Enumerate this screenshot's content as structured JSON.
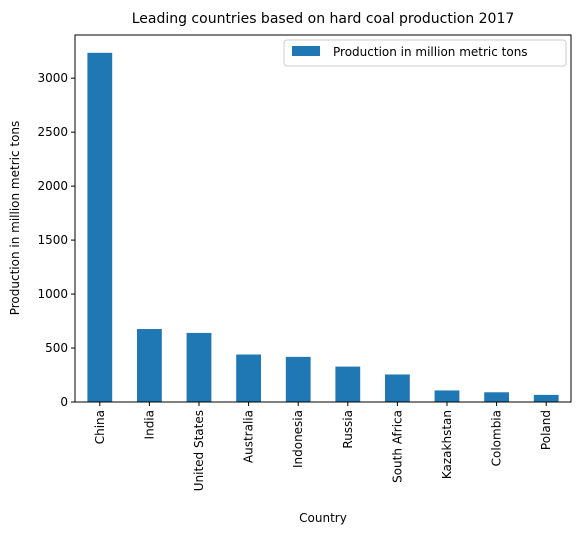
{
  "chart_data": {
    "type": "bar",
    "title": "Leading countries based on hard coal production 2017",
    "xlabel": "Country",
    "ylabel": "Production in million metric tons",
    "categories": [
      "China",
      "India",
      "United States",
      "Australia",
      "Indonesia",
      "Russia",
      "South Africa",
      "Kazakhstan",
      "Colombia",
      "Poland"
    ],
    "series": [
      {
        "name": "Production in million metric tons",
        "values": [
          3235,
          676,
          640,
          440,
          418,
          328,
          255,
          107,
          90,
          66
        ],
        "color": "#1f77b4"
      }
    ],
    "ylim": [
      0,
      3400
    ],
    "yticks": [
      0,
      500,
      1000,
      1500,
      2000,
      2500,
      3000
    ],
    "legend_position": "top-right",
    "grid": false
  }
}
